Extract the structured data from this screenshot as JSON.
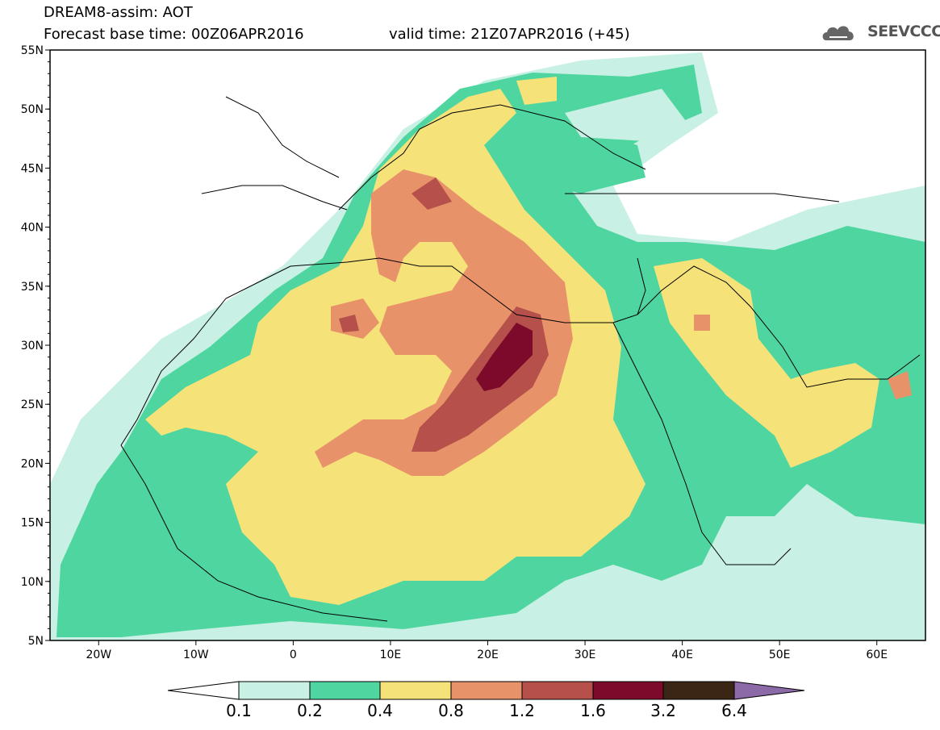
{
  "header": {
    "model_title": "DREAM8-assim: AOT",
    "base_time": "Forecast base time: 00Z06APR2016",
    "valid_time": "valid time: 21Z07APR2016 (+45)",
    "logo_text": "SEEVCCC"
  },
  "map": {
    "lon_range": [
      -25,
      65
    ],
    "lat_range": [
      5,
      55
    ],
    "lat_ticks": [
      "55N",
      "50N",
      "45N",
      "40N",
      "35N",
      "30N",
      "25N",
      "20N",
      "15N",
      "10N",
      "5N"
    ],
    "lon_ticks": [
      "20W",
      "10W",
      "0",
      "10E",
      "20E",
      "30E",
      "40E",
      "50E",
      "60E"
    ]
  },
  "colorbar": {
    "labels": [
      "0.1",
      "0.2",
      "0.4",
      "0.8",
      "1.2",
      "1.6",
      "3.2",
      "6.4"
    ],
    "colors": [
      "#ffffff",
      "#c8f0e4",
      "#4fd6a0",
      "#f5e37a",
      "#e8926a",
      "#b5504a",
      "#7d0a2a",
      "#3b2616",
      "#8c6aa8"
    ]
  }
}
